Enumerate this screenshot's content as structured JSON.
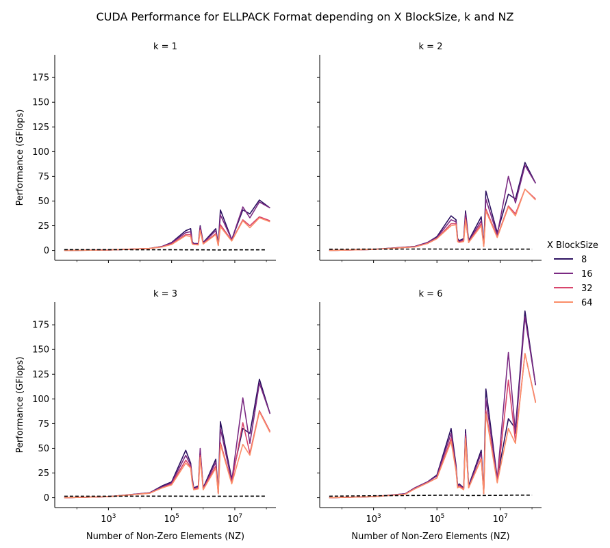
{
  "title": "CUDA Performance for ELLPACK Format depending on X BlockSize, k and NZ",
  "legend": {
    "title": "X BlockSize",
    "placement": "right",
    "items": [
      {
        "label": "8",
        "color": "#2c1160"
      },
      {
        "label": "16",
        "color": "#7a2982"
      },
      {
        "label": "32",
        "color": "#d8456c"
      },
      {
        "label": "64",
        "color": "#fb8d67"
      }
    ]
  },
  "colors": {
    "baseline": "#000000",
    "axis": "#000000"
  },
  "chart_data": {
    "type": "line",
    "x_scale": "log",
    "xlabel": "Number of Non-Zero Elements (NZ)",
    "ylabel": "Performance (GFlops)",
    "xlim": [
      20,
      200000000
    ],
    "ylim": [
      -10,
      198
    ],
    "x_ticks": [
      1000,
      100000,
      10000000
    ],
    "x_tick_labels": [
      "10^3",
      "10^5",
      "10^7"
    ],
    "y_ticks": [
      0,
      25,
      50,
      75,
      100,
      125,
      150,
      175
    ],
    "y_tick_labels": [
      "0",
      "25",
      "50",
      "75",
      "100",
      "125",
      "150",
      "175"
    ],
    "panels": [
      {
        "title": "k = 1",
        "baseline": {
          "x": [
            40,
            1000,
            20000,
            100000,
            500000,
            1000000,
            3000000,
            10000000,
            30000000,
            100000000
          ],
          "y": [
            0.8,
            0.8,
            0.7,
            0.7,
            0.6,
            0.6,
            0.5,
            0.6,
            0.6,
            0.6
          ]
        },
        "series": [
          {
            "name": "8",
            "x": [
              40,
              1000,
              20000,
              50000,
              100000,
              280000,
              400000,
              450000,
              500000,
              700000,
              800000,
              1000000,
              2500000,
              3000000,
              3500000,
              8000000,
              18000000,
              30000000,
              60000000,
              130000000
            ],
            "y": [
              0,
              0.5,
              2,
              4,
              8,
              20,
              22,
              9,
              7,
              7,
              25,
              8,
              22,
              6,
              41,
              11,
              41,
              37,
              51,
              43
            ]
          },
          {
            "name": "16",
            "x": [
              40,
              1000,
              20000,
              50000,
              100000,
              280000,
              400000,
              450000,
              500000,
              700000,
              800000,
              1000000,
              2500000,
              3000000,
              3500000,
              8000000,
              18000000,
              30000000,
              60000000,
              130000000
            ],
            "y": [
              0,
              0.5,
              2,
              4,
              7.5,
              18,
              19,
              8,
              7,
              6.5,
              24,
              7.5,
              20,
              5.5,
              36,
              11,
              44,
              33,
              49,
              43
            ]
          },
          {
            "name": "32",
            "x": [
              40,
              1000,
              20000,
              50000,
              100000,
              280000,
              400000,
              450000,
              500000,
              700000,
              800000,
              1000000,
              2500000,
              3000000,
              3500000,
              8000000,
              18000000,
              30000000,
              60000000,
              130000000
            ],
            "y": [
              0,
              0.5,
              2,
              3.5,
              6.5,
              16,
              16,
              7,
              6,
              6,
              21,
              7,
              17,
              5,
              26,
              10,
              31,
              25,
              34,
              30
            ]
          },
          {
            "name": "64",
            "x": [
              40,
              1000,
              20000,
              50000,
              100000,
              280000,
              400000,
              450000,
              500000,
              700000,
              800000,
              1000000,
              2500000,
              3000000,
              3500000,
              8000000,
              18000000,
              30000000,
              60000000,
              130000000
            ],
            "y": [
              0,
              0.5,
              2,
              3.5,
              6,
              15,
              14,
              6.5,
              6,
              5.5,
              20,
              6.5,
              16,
              5,
              24,
              9.5,
              30,
              23,
              33,
              29
            ]
          }
        ]
      },
      {
        "title": "k = 2",
        "baseline": {
          "x": [
            40,
            1000,
            20000,
            100000,
            500000,
            1000000,
            3000000,
            10000000,
            30000000,
            100000000
          ],
          "y": [
            1.2,
            1.3,
            1.4,
            1.4,
            1.3,
            1.2,
            1.2,
            1.2,
            1.3,
            1.3
          ]
        },
        "series": [
          {
            "name": "8",
            "x": [
              40,
              1000,
              20000,
              50000,
              100000,
              280000,
              400000,
              450000,
              500000,
              700000,
              800000,
              1000000,
              2500000,
              3000000,
              3500000,
              8000000,
              18000000,
              30000000,
              60000000,
              130000000
            ],
            "y": [
              0,
              1,
              4,
              8,
              14,
              35,
              31,
              12,
              10,
              12,
              40,
              10,
              34,
              5,
              60,
              18,
              57,
              52,
              89,
              68
            ]
          },
          {
            "name": "16",
            "x": [
              40,
              1000,
              20000,
              50000,
              100000,
              280000,
              400000,
              450000,
              500000,
              700000,
              800000,
              1000000,
              2500000,
              3000000,
              3500000,
              8000000,
              18000000,
              30000000,
              60000000,
              130000000
            ],
            "y": [
              0,
              1,
              4,
              8,
              13,
              31,
              29,
              11,
              9,
              11,
              37,
              9,
              30,
              5,
              52,
              16,
              75,
              48,
              86,
              68
            ]
          },
          {
            "name": "32",
            "x": [
              40,
              1000,
              20000,
              50000,
              100000,
              280000,
              400000,
              450000,
              500000,
              700000,
              800000,
              1000000,
              2500000,
              3000000,
              3500000,
              8000000,
              18000000,
              30000000,
              60000000,
              130000000
            ],
            "y": [
              0,
              1,
              3.5,
              7,
              12,
              27,
              27,
              10,
              8,
              10,
              33,
              8,
              27,
              4,
              42,
              14,
              45,
              37,
              62,
              52
            ]
          },
          {
            "name": "64",
            "x": [
              40,
              1000,
              20000,
              50000,
              100000,
              280000,
              400000,
              450000,
              500000,
              700000,
              800000,
              1000000,
              2500000,
              3000000,
              3500000,
              8000000,
              18000000,
              30000000,
              60000000,
              130000000
            ],
            "y": [
              0,
              1,
              3.5,
              7,
              12,
              25,
              26,
              9,
              8,
              9,
              31,
              8,
              25,
              4,
              40,
              13,
              44,
              35,
              62,
              51
            ]
          }
        ]
      },
      {
        "title": "k = 3",
        "baseline": {
          "x": [
            40,
            1000,
            20000,
            100000,
            500000,
            1000000,
            3000000,
            10000000,
            30000000,
            100000000
          ],
          "y": [
            1.5,
            1.5,
            1.6,
            1.6,
            1.5,
            1.4,
            1.5,
            1.5,
            1.6,
            1.6
          ]
        },
        "series": [
          {
            "name": "8",
            "x": [
              40,
              1000,
              20000,
              50000,
              100000,
              280000,
              400000,
              450000,
              500000,
              700000,
              800000,
              1000000,
              2500000,
              3000000,
              3500000,
              8000000,
              18000000,
              30000000,
              60000000,
              130000000
            ],
            "y": [
              0,
              1,
              5,
              12,
              16,
              48,
              35,
              20,
              10,
              12,
              47,
              10,
              39,
              5,
              77,
              19,
              70,
              65,
              120,
              85
            ]
          },
          {
            "name": "16",
            "x": [
              40,
              1000,
              20000,
              50000,
              100000,
              280000,
              400000,
              450000,
              500000,
              700000,
              800000,
              1000000,
              2500000,
              3000000,
              3500000,
              8000000,
              18000000,
              30000000,
              60000000,
              130000000
            ],
            "y": [
              0,
              1,
              5,
              11,
              15,
              43,
              33,
              18,
              9,
              11,
              50,
              9,
              36,
              5,
              70,
              17,
              101,
              55,
              116,
              85
            ]
          },
          {
            "name": "32",
            "x": [
              40,
              1000,
              20000,
              50000,
              100000,
              280000,
              400000,
              450000,
              500000,
              700000,
              800000,
              1000000,
              2500000,
              3000000,
              3500000,
              8000000,
              18000000,
              30000000,
              60000000,
              130000000
            ],
            "y": [
              0,
              1,
              4.5,
              10,
              14,
              38,
              31,
              16,
              9,
              10,
              43,
              9,
              32,
              4,
              56,
              15,
              76,
              45,
              88,
              67
            ]
          },
          {
            "name": "64",
            "x": [
              40,
              1000,
              20000,
              50000,
              100000,
              280000,
              400000,
              450000,
              500000,
              700000,
              800000,
              1000000,
              2500000,
              3000000,
              3500000,
              8000000,
              18000000,
              30000000,
              60000000,
              130000000
            ],
            "y": [
              0,
              1,
              4.5,
              10,
              13,
              35,
              30,
              15,
              8,
              9,
              41,
              8,
              30,
              4,
              54,
              14,
              54,
              43,
              87,
              66
            ]
          }
        ]
      },
      {
        "title": "k = 6",
        "baseline": {
          "x": [
            40,
            1000,
            20000,
            100000,
            500000,
            1000000,
            3000000,
            10000000,
            30000000,
            100000000
          ],
          "y": [
            1.5,
            2,
            2.3,
            2.5,
            2.6,
            2.2,
            2.3,
            2.4,
            2.6,
            2.6
          ]
        },
        "series": [
          {
            "name": "8",
            "x": [
              40,
              1000,
              10000,
              20000,
              50000,
              100000,
              280000,
              400000,
              450000,
              500000,
              700000,
              800000,
              1000000,
              2500000,
              3000000,
              3500000,
              8000000,
              18000000,
              30000000,
              60000000,
              130000000
            ],
            "y": [
              0,
              1,
              4,
              10,
              16,
              23,
              70,
              33,
              12,
              14,
              10,
              69,
              12,
              48,
              5,
              110,
              20,
              80,
              70,
              189,
              114
            ]
          },
          {
            "name": "16",
            "x": [
              40,
              1000,
              10000,
              20000,
              50000,
              100000,
              280000,
              400000,
              450000,
              500000,
              700000,
              800000,
              1000000,
              2500000,
              3000000,
              3500000,
              8000000,
              18000000,
              30000000,
              60000000,
              130000000
            ],
            "y": [
              0,
              1,
              4,
              10,
              16,
              22,
              65,
              31,
              11,
              13,
              9,
              65,
              11,
              45,
              5,
              100,
              19,
              147,
              65,
              183,
              114
            ]
          },
          {
            "name": "32",
            "x": [
              40,
              1000,
              10000,
              20000,
              50000,
              100000,
              280000,
              400000,
              450000,
              500000,
              700000,
              800000,
              1000000,
              2500000,
              3000000,
              3500000,
              8000000,
              18000000,
              30000000,
              60000000,
              130000000
            ],
            "y": [
              0,
              1,
              3.5,
              9,
              15,
              20,
              60,
              28,
              10,
              12,
              9,
              62,
              10,
              40,
              4,
              88,
              16,
              119,
              57,
              146,
              97
            ]
          },
          {
            "name": "64",
            "x": [
              40,
              1000,
              10000,
              20000,
              50000,
              100000,
              280000,
              400000,
              450000,
              500000,
              700000,
              800000,
              1000000,
              2500000,
              3000000,
              3500000,
              8000000,
              18000000,
              30000000,
              60000000,
              130000000
            ],
            "y": [
              0,
              1,
              3.5,
              9,
              15,
              20,
              57,
              27,
              10,
              11,
              8,
              60,
              10,
              39,
              4,
              85,
              15,
              70,
              55,
              146,
              96
            ]
          }
        ]
      }
    ]
  }
}
